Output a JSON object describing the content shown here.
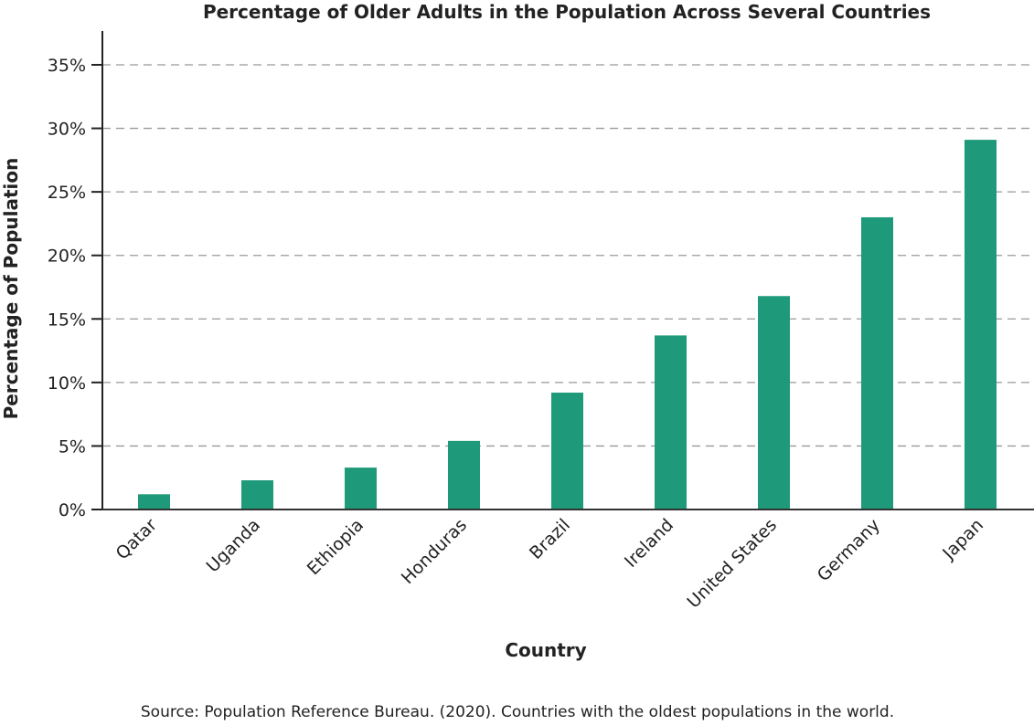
{
  "chart_data": {
    "type": "bar",
    "title": "Percentage of Older Adults in the Population Across Several Countries",
    "xlabel": "Country",
    "ylabel": "Percentage of Population",
    "categories": [
      "Qatar",
      "Uganda",
      "Ethiopia",
      "Honduras",
      "Brazil",
      "Ireland",
      "United States",
      "Germany",
      "Japan"
    ],
    "values": [
      1.2,
      2.3,
      3.3,
      5.4,
      9.2,
      13.7,
      16.8,
      23.0,
      29.1
    ],
    "ylim": [
      0,
      37.5
    ],
    "yticks": [
      0,
      5,
      10,
      15,
      20,
      25,
      30,
      35
    ],
    "ytick_labels": [
      "0%",
      "5%",
      "10%",
      "15%",
      "20%",
      "25%",
      "30%",
      "35%"
    ],
    "grid": "horizontal dashed",
    "bar_color": "#1e9a7a",
    "source": "Source: Population Reference Bureau. (2020). Countries with the oldest populations in the world."
  }
}
